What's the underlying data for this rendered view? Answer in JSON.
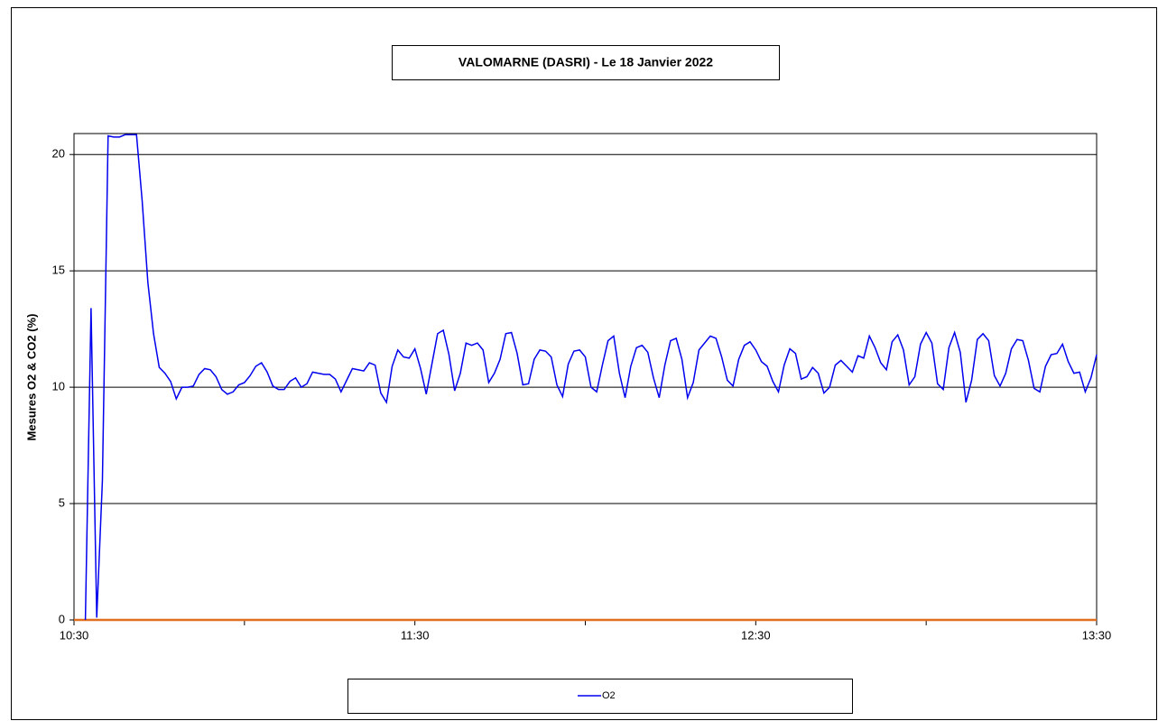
{
  "chart_data": {
    "type": "line",
    "title": "VALOMARNE (DASRI) - Le 18 Janvier 2022",
    "y_label": "Mesures O2 & CO2 (%)",
    "xlim": [
      630,
      810
    ],
    "xticks": [
      {
        "value": 630,
        "label": "10:30"
      },
      {
        "value": 690,
        "label": "11:30"
      },
      {
        "value": 750,
        "label": "12:30"
      },
      {
        "value": 810,
        "label": "13:30"
      }
    ],
    "xminor_ticks": [
      660,
      720,
      780
    ],
    "ylim": [
      0,
      20.9
    ],
    "yticks": [
      0,
      5,
      10,
      15,
      20
    ],
    "grid": true,
    "xaxis_color": "#e07020",
    "legend": "bottom",
    "x": [
      632,
      633,
      634,
      635,
      636,
      637,
      638,
      639,
      640,
      641,
      642,
      643,
      644,
      645,
      646,
      647,
      648,
      649,
      650,
      651,
      652,
      653,
      654,
      655,
      656,
      657,
      658,
      659,
      660,
      661,
      662,
      663,
      664,
      665,
      666,
      667,
      668,
      669,
      670,
      671,
      672,
      673,
      674,
      675,
      676,
      677,
      678,
      679,
      680,
      681,
      682,
      683,
      684,
      685,
      686,
      687,
      688,
      689,
      690,
      691,
      692,
      693,
      694,
      695,
      696,
      697,
      698,
      699,
      700,
      701,
      702,
      703,
      704,
      705,
      706,
      707,
      708,
      709,
      710,
      711,
      712,
      713,
      714,
      715,
      716,
      717,
      718,
      719,
      720,
      721,
      722,
      723,
      724,
      725,
      726,
      727,
      728,
      729,
      730,
      731,
      732,
      733,
      734,
      735,
      736,
      737,
      738,
      739,
      740,
      741,
      742,
      743,
      744,
      745,
      746,
      747,
      748,
      749,
      750,
      751,
      752,
      753,
      754,
      755,
      756,
      757,
      758,
      759,
      760,
      761,
      762,
      763,
      764,
      765,
      766,
      767,
      768,
      769,
      770,
      771,
      772,
      773,
      774,
      775,
      776,
      777,
      778,
      779,
      780,
      781,
      782,
      783,
      784,
      785,
      786,
      787,
      788,
      789,
      790,
      791,
      792,
      793,
      794,
      795,
      796,
      797,
      798,
      799,
      800,
      801,
      802,
      803,
      804,
      805,
      806,
      807,
      808,
      809,
      810
    ],
    "series": [
      {
        "name": "O2",
        "color": "#0000ee",
        "values": [
          0,
          13.4,
          0.1,
          6,
          20.8,
          20.75,
          20.75,
          20.85,
          20.85,
          20.85,
          18,
          14.5,
          12.3,
          10.85,
          10.6,
          10.25,
          9.5,
          10,
          10,
          10.05,
          10.55,
          10.8,
          10.75,
          10.45,
          9.9,
          9.7,
          9.8,
          10.1,
          10.2,
          10.5,
          10.9,
          11.05,
          10.65,
          10.05,
          9.9,
          9.9,
          10.25,
          10.4,
          10,
          10.15,
          10.65,
          10.6,
          10.55,
          10.55,
          10.35,
          9.8,
          10.3,
          10.8,
          10.75,
          10.7,
          11.05,
          10.95,
          9.75,
          9.35,
          10.9,
          11.6,
          11.3,
          11.25,
          11.65,
          10.8,
          9.7,
          11,
          12.3,
          12.45,
          11.4,
          9.85,
          10.6,
          11.9,
          11.8,
          11.9,
          11.6,
          10.2,
          10.6,
          11.2,
          12.3,
          12.35,
          11.45,
          10.1,
          10.15,
          11.2,
          11.6,
          11.55,
          11.3,
          10.1,
          9.6,
          11,
          11.55,
          11.6,
          11.3,
          10,
          9.8,
          10.95,
          12,
          12.2,
          10.6,
          9.55,
          10.9,
          11.7,
          11.8,
          11.5,
          10.4,
          9.55,
          10.95,
          12,
          12.1,
          11.2,
          9.55,
          10.2,
          11.6,
          11.9,
          12.2,
          12.1,
          11.3,
          10.3,
          10.05,
          11.2,
          11.8,
          11.95,
          11.6,
          11.1,
          10.9,
          10.25,
          9.8,
          10.95,
          11.65,
          11.45,
          10.35,
          10.45,
          10.85,
          10.6,
          9.75,
          10,
          10.95,
          11.15,
          10.9,
          10.65,
          11.35,
          11.25,
          12.2,
          11.7,
          11.05,
          10.75,
          11.95,
          12.25,
          11.6,
          10.1,
          10.45,
          11.85,
          12.35,
          11.9,
          10.15,
          9.9,
          11.7,
          12.35,
          11.5,
          9.35,
          10.3,
          12.05,
          12.3,
          12,
          10.5,
          10.05,
          10.6,
          11.65,
          12.05,
          12,
          11.15,
          9.95,
          9.8,
          10.9,
          11.4,
          11.45,
          11.85,
          11.1,
          10.6,
          10.65,
          9.8,
          10.4,
          11.4
        ]
      }
    ]
  }
}
